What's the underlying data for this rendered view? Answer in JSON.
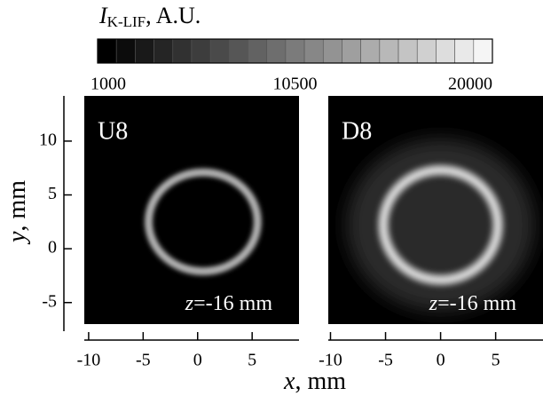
{
  "chart_data": {
    "type": "intensity-map",
    "colorbar": {
      "symbol": "I",
      "subscript": "K-LIF",
      "suffix": ", A.U.",
      "lim": [
        1000,
        20000
      ],
      "ticks": [
        1000,
        10500,
        20000
      ],
      "colors": [
        "#000000",
        "#f5f5f5"
      ]
    },
    "x_label": {
      "symbol": "x",
      "suffix": ", mm"
    },
    "y_label": {
      "symbol": "y",
      "suffix": ", mm"
    },
    "ylim": [
      -7,
      14.2
    ],
    "yticks": [
      -5,
      0,
      5,
      10
    ],
    "panels": [
      {
        "label": "U8",
        "annotation": {
          "symbol": "z",
          "suffix": "=-16 mm"
        },
        "xlim": [
          -10.4,
          9.3
        ],
        "xticks": [
          -10,
          -5,
          0,
          5
        ]
      },
      {
        "label": "D8",
        "annotation": {
          "symbol": "z",
          "suffix": "=-16 mm"
        },
        "xlim": [
          -10.2,
          9.3
        ],
        "xticks": [
          -10,
          -5,
          0,
          5
        ]
      }
    ]
  }
}
